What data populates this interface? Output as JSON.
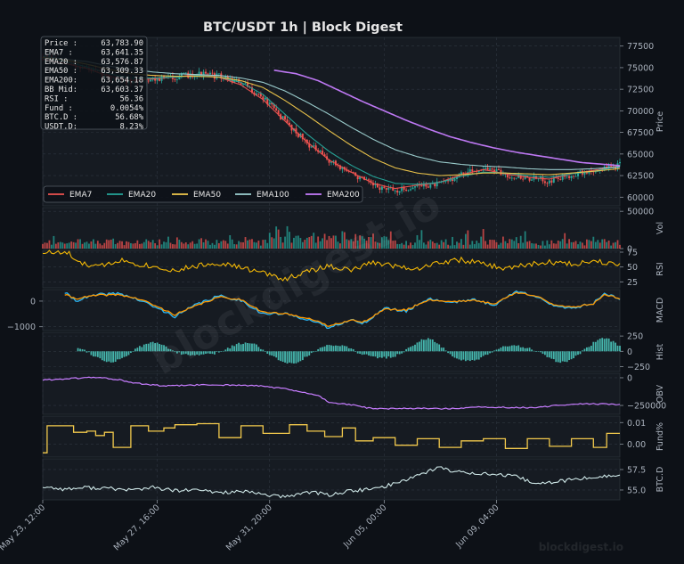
{
  "chart_data": {
    "type": "line",
    "title": "BTC/USDT  1h  |  Block Digest",
    "watermark": "blockdigest.io",
    "x_ticks": [
      "May 23, 12:00",
      "May 27, 16:00",
      "May 31, 20:00",
      "Jun 05, 00:00",
      "Jun 09, 04:00"
    ],
    "stats": [
      {
        "label": "Price :",
        "value": "63,783.90"
      },
      {
        "label": "EMA7  :",
        "value": "63,641.35"
      },
      {
        "label": "EMA20 :",
        "value": "63,576.87"
      },
      {
        "label": "EMA50 :",
        "value": "63,309.33"
      },
      {
        "label": "EMA200:",
        "value": "63,654.18"
      },
      {
        "label": "BB Mid:",
        "value": "63,603.37"
      },
      {
        "label": "RSI   :",
        "value": "56.36"
      },
      {
        "label": "Fund  :",
        "value": "0.0054%"
      },
      {
        "label": "BTC.D :",
        "value": "56.68%"
      },
      {
        "label": "USDT.D:",
        "value": "8.23%"
      }
    ],
    "legend": [
      {
        "name": "EMA7",
        "color": "#ef5350"
      },
      {
        "name": "EMA20",
        "color": "#26a69a"
      },
      {
        "name": "EMA50",
        "color": "#f2c94c"
      },
      {
        "name": "EMA100",
        "color": "#9fd3d3"
      },
      {
        "name": "EMA200",
        "color": "#c77dff"
      }
    ],
    "colors": {
      "up": "#26a69a",
      "down": "#ef5350",
      "rsi": "#f2b705",
      "macd": "#29b6f6",
      "signal": "#ff9800",
      "hist": "#4dd0c4",
      "obv": "#c77dff",
      "fund": "#f2c94c",
      "btcd": "#cfe8e8"
    },
    "price_panel": {
      "ylabel": "Price",
      "ylim": [
        59000,
        78500
      ],
      "ticks": [
        "60000",
        "62500",
        "65000",
        "67500",
        "70000",
        "72500",
        "75000",
        "77500"
      ],
      "close_path": [
        [
          0,
          76200
        ],
        [
          10,
          75600
        ],
        [
          20,
          74900
        ],
        [
          30,
          73900
        ],
        [
          40,
          73300
        ],
        [
          50,
          73700
        ],
        [
          60,
          73900
        ],
        [
          70,
          74300
        ],
        [
          80,
          74000
        ],
        [
          90,
          73200
        ],
        [
          100,
          71500
        ],
        [
          110,
          68800
        ],
        [
          120,
          66300
        ],
        [
          130,
          64200
        ],
        [
          140,
          62800
        ],
        [
          150,
          61300
        ],
        [
          160,
          60700
        ],
        [
          170,
          61300
        ],
        [
          180,
          61500
        ],
        [
          190,
          62600
        ],
        [
          200,
          63400
        ],
        [
          210,
          62600
        ],
        [
          220,
          62200
        ],
        [
          230,
          61900
        ],
        [
          240,
          62600
        ],
        [
          250,
          63000
        ],
        [
          262,
          63784
        ]
      ],
      "ema7_path": [
        [
          0,
          76000
        ],
        [
          10,
          75500
        ],
        [
          20,
          74900
        ],
        [
          30,
          74000
        ],
        [
          40,
          73500
        ],
        [
          50,
          73700
        ],
        [
          60,
          73900
        ],
        [
          70,
          74200
        ],
        [
          80,
          73900
        ],
        [
          90,
          73000
        ],
        [
          100,
          71300
        ],
        [
          110,
          68800
        ],
        [
          120,
          66400
        ],
        [
          130,
          64300
        ],
        [
          140,
          62900
        ],
        [
          150,
          61600
        ],
        [
          160,
          61000
        ],
        [
          170,
          61400
        ],
        [
          180,
          61700
        ],
        [
          190,
          62600
        ],
        [
          200,
          63200
        ],
        [
          210,
          62700
        ],
        [
          220,
          62300
        ],
        [
          230,
          62100
        ],
        [
          240,
          62700
        ],
        [
          250,
          63100
        ],
        [
          262,
          63641
        ]
      ],
      "ema20_path": [
        [
          0,
          76100
        ],
        [
          10,
          75700
        ],
        [
          20,
          75100
        ],
        [
          30,
          74300
        ],
        [
          40,
          73800
        ],
        [
          50,
          73800
        ],
        [
          60,
          73900
        ],
        [
          70,
          74100
        ],
        [
          80,
          73900
        ],
        [
          90,
          73300
        ],
        [
          100,
          71900
        ],
        [
          110,
          69600
        ],
        [
          120,
          67300
        ],
        [
          130,
          65300
        ],
        [
          140,
          63700
        ],
        [
          150,
          62400
        ],
        [
          160,
          61600
        ],
        [
          170,
          61500
        ],
        [
          180,
          61700
        ],
        [
          190,
          62400
        ],
        [
          200,
          62900
        ],
        [
          210,
          62800
        ],
        [
          220,
          62500
        ],
        [
          230,
          62300
        ],
        [
          240,
          62700
        ],
        [
          250,
          63000
        ],
        [
          262,
          63577
        ]
      ],
      "ema50_path": [
        [
          0,
          76200
        ],
        [
          10,
          75900
        ],
        [
          20,
          75400
        ],
        [
          30,
          74800
        ],
        [
          40,
          74300
        ],
        [
          50,
          74100
        ],
        [
          60,
          74000
        ],
        [
          70,
          74000
        ],
        [
          80,
          73900
        ],
        [
          90,
          73500
        ],
        [
          100,
          72700
        ],
        [
          110,
          71200
        ],
        [
          120,
          69500
        ],
        [
          130,
          67700
        ],
        [
          140,
          66000
        ],
        [
          150,
          64500
        ],
        [
          160,
          63400
        ],
        [
          170,
          62800
        ],
        [
          180,
          62500
        ],
        [
          190,
          62600
        ],
        [
          200,
          62800
        ],
        [
          210,
          62800
        ],
        [
          220,
          62700
        ],
        [
          230,
          62600
        ],
        [
          240,
          62800
        ],
        [
          250,
          63000
        ],
        [
          262,
          63309
        ]
      ],
      "ema100_path": [
        [
          0,
          76300
        ],
        [
          10,
          76000
        ],
        [
          20,
          75700
        ],
        [
          30,
          75200
        ],
        [
          40,
          74800
        ],
        [
          50,
          74500
        ],
        [
          60,
          74300
        ],
        [
          70,
          74200
        ],
        [
          80,
          74100
        ],
        [
          90,
          73800
        ],
        [
          100,
          73300
        ],
        [
          110,
          72300
        ],
        [
          120,
          71000
        ],
        [
          130,
          69600
        ],
        [
          140,
          68100
        ],
        [
          150,
          66700
        ],
        [
          160,
          65500
        ],
        [
          170,
          64700
        ],
        [
          180,
          64100
        ],
        [
          190,
          63800
        ],
        [
          200,
          63600
        ],
        [
          210,
          63500
        ],
        [
          220,
          63300
        ],
        [
          230,
          63200
        ],
        [
          240,
          63200
        ],
        [
          250,
          63300
        ],
        [
          262,
          63500
        ]
      ],
      "ema200_path": [
        [
          105,
          74700
        ],
        [
          115,
          74300
        ],
        [
          125,
          73500
        ],
        [
          135,
          72300
        ],
        [
          145,
          71100
        ],
        [
          155,
          70000
        ],
        [
          165,
          68900
        ],
        [
          175,
          67900
        ],
        [
          185,
          67000
        ],
        [
          195,
          66300
        ],
        [
          205,
          65700
        ],
        [
          215,
          65200
        ],
        [
          225,
          64800
        ],
        [
          235,
          64400
        ],
        [
          245,
          64000
        ],
        [
          262,
          63654
        ]
      ]
    },
    "volume_panel": {
      "ylabel": "Vol",
      "ticks": [
        "0",
        "50000"
      ]
    },
    "rsi_panel": {
      "ylabel": "RSI",
      "ylim": [
        15,
        78
      ],
      "ticks": [
        "25",
        "50",
        "75"
      ],
      "path": [
        [
          0,
          75
        ],
        [
          12,
          73
        ],
        [
          15,
          58
        ],
        [
          25,
          50
        ],
        [
          35,
          62
        ],
        [
          45,
          54
        ],
        [
          55,
          48
        ],
        [
          60,
          44
        ],
        [
          70,
          52
        ],
        [
          80,
          57
        ],
        [
          90,
          49
        ],
        [
          100,
          40
        ],
        [
          110,
          30
        ],
        [
          120,
          42
        ],
        [
          130,
          52
        ],
        [
          140,
          44
        ],
        [
          150,
          58
        ],
        [
          160,
          52
        ],
        [
          170,
          47
        ],
        [
          180,
          58
        ],
        [
          190,
          62
        ],
        [
          200,
          55
        ],
        [
          210,
          47
        ],
        [
          220,
          54
        ],
        [
          230,
          58
        ],
        [
          240,
          55
        ],
        [
          250,
          60
        ],
        [
          262,
          56
        ]
      ]
    },
    "macd_panel": {
      "ylabel": "MACD",
      "ylim": [
        -1150,
        450
      ],
      "ticks": [
        "0",
        "−1000"
      ],
      "macd_path": [
        [
          10,
          330
        ],
        [
          15,
          20
        ],
        [
          25,
          250
        ],
        [
          35,
          300
        ],
        [
          45,
          0
        ],
        [
          60,
          -600
        ],
        [
          70,
          -120
        ],
        [
          80,
          200
        ],
        [
          90,
          30
        ],
        [
          100,
          -500
        ],
        [
          110,
          -500
        ],
        [
          120,
          -700
        ],
        [
          130,
          -1050
        ],
        [
          140,
          -700
        ],
        [
          145,
          -920
        ],
        [
          155,
          -280
        ],
        [
          165,
          -400
        ],
        [
          175,
          100
        ],
        [
          185,
          -50
        ],
        [
          195,
          60
        ],
        [
          205,
          -150
        ],
        [
          215,
          380
        ],
        [
          225,
          180
        ],
        [
          232,
          -230
        ],
        [
          242,
          -250
        ],
        [
          250,
          -80
        ],
        [
          255,
          320
        ],
        [
          262,
          70
        ]
      ],
      "signal_path": [
        [
          10,
          250
        ],
        [
          15,
          100
        ],
        [
          25,
          230
        ],
        [
          35,
          250
        ],
        [
          45,
          50
        ],
        [
          60,
          -530
        ],
        [
          70,
          -170
        ],
        [
          80,
          160
        ],
        [
          90,
          60
        ],
        [
          100,
          -430
        ],
        [
          110,
          -500
        ],
        [
          120,
          -650
        ],
        [
          130,
          -980
        ],
        [
          140,
          -720
        ],
        [
          145,
          -850
        ],
        [
          155,
          -320
        ],
        [
          165,
          -350
        ],
        [
          175,
          50
        ],
        [
          185,
          -20
        ],
        [
          195,
          30
        ],
        [
          205,
          -100
        ],
        [
          215,
          330
        ],
        [
          225,
          200
        ],
        [
          232,
          -180
        ],
        [
          242,
          -220
        ],
        [
          250,
          -100
        ],
        [
          255,
          270
        ],
        [
          262,
          90
        ]
      ]
    },
    "hist_panel": {
      "ylabel": "Hist",
      "ylim": [
        -330,
        310
      ],
      "ticks": [
        "250",
        "0",
        "−250"
      ]
    },
    "obv_panel": {
      "ylabel": "OBV",
      "ylim": [
        -330000,
        40000
      ],
      "ticks": [
        "0",
        "−250000"
      ],
      "path": [
        [
          0,
          -20000
        ],
        [
          15,
          -5000
        ],
        [
          25,
          5000
        ],
        [
          35,
          -20000
        ],
        [
          40,
          -45000
        ],
        [
          55,
          -75000
        ],
        [
          70,
          -65000
        ],
        [
          85,
          -65000
        ],
        [
          100,
          -75000
        ],
        [
          110,
          -100000
        ],
        [
          125,
          -160000
        ],
        [
          130,
          -220000
        ],
        [
          140,
          -245000
        ],
        [
          150,
          -280000
        ],
        [
          160,
          -280000
        ],
        [
          170,
          -275000
        ],
        [
          185,
          -280000
        ],
        [
          200,
          -265000
        ],
        [
          215,
          -270000
        ],
        [
          225,
          -270000
        ],
        [
          235,
          -245000
        ],
        [
          245,
          -235000
        ],
        [
          262,
          -240000
        ]
      ]
    },
    "fund_panel": {
      "ylabel": "Fund%",
      "ylim": [
        -0.006,
        0.013
      ],
      "ticks": [
        "0.01",
        "0.00"
      ],
      "path": [
        [
          0,
          -0.004
        ],
        [
          2,
          0.0085
        ],
        [
          10,
          0.0085
        ],
        [
          14,
          0.0055
        ],
        [
          20,
          0.006
        ],
        [
          24,
          0.004
        ],
        [
          28,
          0.0055
        ],
        [
          32,
          -0.0015
        ],
        [
          40,
          0.0085
        ],
        [
          48,
          0.006
        ],
        [
          55,
          0.0075
        ],
        [
          60,
          0.009
        ],
        [
          70,
          0.0095
        ],
        [
          80,
          0.003
        ],
        [
          90,
          0.0085
        ],
        [
          100,
          0.005
        ],
        [
          112,
          0.009
        ],
        [
          120,
          0.006
        ],
        [
          128,
          0.0035
        ],
        [
          136,
          0.0075
        ],
        [
          140,
          0.0075
        ],
        [
          142,
          0.0015
        ],
        [
          150,
          0.003
        ],
        [
          160,
          -0.0005
        ],
        [
          170,
          0.0025
        ],
        [
          180,
          -0.0015
        ],
        [
          190,
          0.0015
        ],
        [
          200,
          0.0025
        ],
        [
          210,
          -0.002
        ],
        [
          220,
          0.0025
        ],
        [
          230,
          -0.001
        ],
        [
          240,
          0.0025
        ],
        [
          250,
          -0.0015
        ],
        [
          256,
          0.005
        ],
        [
          262,
          0.005
        ]
      ]
    },
    "btcd_panel": {
      "ylabel": "BTC.D",
      "ylim": [
        53.8,
        58.8
      ],
      "ticks": [
        "57.5",
        "55.0"
      ],
      "path": [
        [
          0,
          55.4
        ],
        [
          10,
          55.1
        ],
        [
          20,
          55.3
        ],
        [
          30,
          55.2
        ],
        [
          40,
          55.0
        ],
        [
          50,
          55.3
        ],
        [
          60,
          54.9
        ],
        [
          70,
          55.0
        ],
        [
          80,
          54.7
        ],
        [
          90,
          54.8
        ],
        [
          100,
          54.5
        ],
        [
          110,
          54.1
        ],
        [
          120,
          54.8
        ],
        [
          130,
          54.4
        ],
        [
          140,
          54.9
        ],
        [
          150,
          55.1
        ],
        [
          160,
          55.8
        ],
        [
          170,
          56.8
        ],
        [
          180,
          57.8
        ],
        [
          185,
          57.3
        ],
        [
          195,
          57.1
        ],
        [
          205,
          56.9
        ],
        [
          215,
          56.6
        ],
        [
          225,
          55.7
        ],
        [
          235,
          56.1
        ],
        [
          245,
          56.4
        ],
        [
          255,
          56.7
        ],
        [
          262,
          56.7
        ]
      ]
    }
  }
}
